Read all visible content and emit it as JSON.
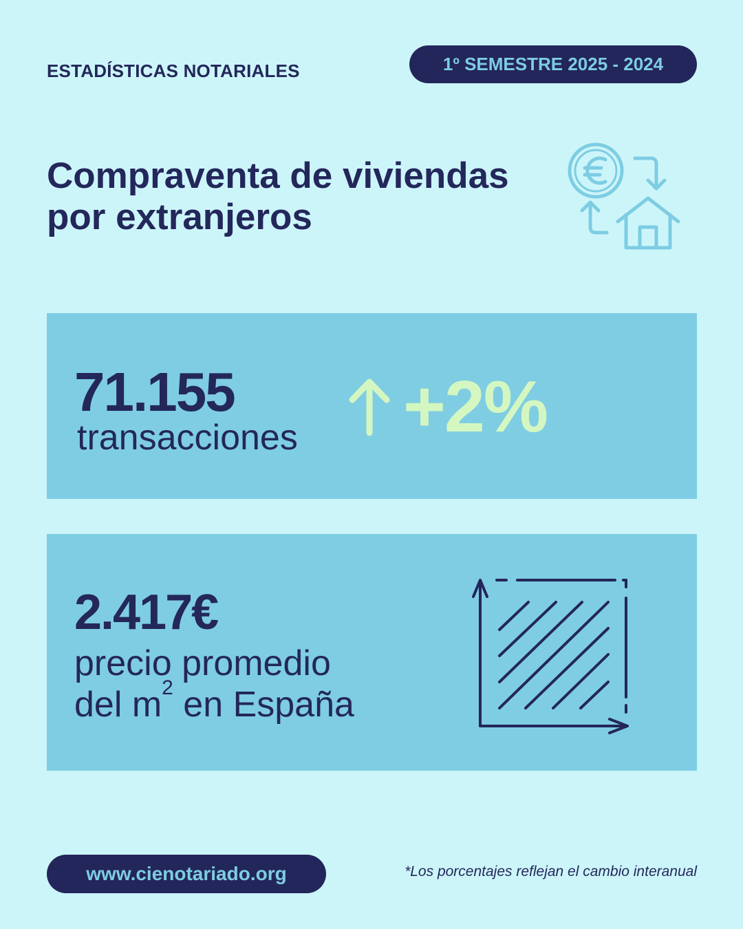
{
  "header": {
    "kicker": "ESTADÍSTICAS NOTARIALES",
    "period": "1º SEMESTRE 2025 - 2024"
  },
  "title": {
    "line1": "Compraventa de viviendas",
    "line2": "por extranjeros"
  },
  "stats": {
    "transactions": {
      "value": "71.155",
      "label": "transacciones",
      "change": "+2%",
      "trend_icon": "arrow-up-icon"
    },
    "price": {
      "value": "2.417€",
      "label_line1": "precio promedio",
      "label_line2_prefix": "del m",
      "label_line2_sup": "2",
      "label_line2_suffix": " en España",
      "icon": "square-meter-icon"
    }
  },
  "footer": {
    "url": "www.cienotariado.org",
    "note": "*Los porcentajes reflejan el cambio interanual"
  },
  "colors": {
    "background": "#ccf5fa",
    "navy": "#23265a",
    "card": "#7fcde3",
    "accent_green": "#d4f7c1",
    "icon_blue": "#7dcde3"
  }
}
